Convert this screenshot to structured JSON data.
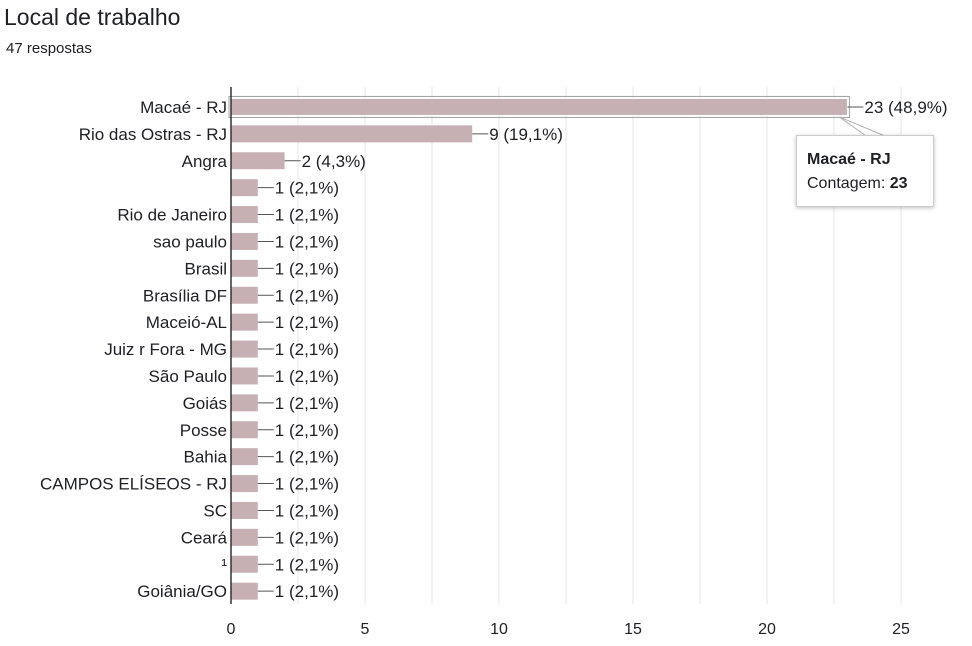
{
  "header": {
    "title": "Local de trabalho",
    "responses": "47 respostas"
  },
  "colors": {
    "bar": "#c7b0b3",
    "bar_highlight": "#c7b0b3",
    "grid": "#e6e6e6",
    "axis": "#333333"
  },
  "tooltip": {
    "title": "Macaé - RJ",
    "label": "Contagem:",
    "value": "23"
  },
  "chart_data": {
    "type": "bar",
    "orientation": "horizontal",
    "categories": [
      "Macaé - RJ",
      "Rio das Ostras - RJ",
      "Angra",
      "",
      "Rio de Janeiro",
      "sao paulo",
      "Brasil",
      "Brasília DF",
      "Maceió-AL",
      "Juiz r Fora - MG",
      "São Paulo",
      "Goiás",
      "Posse",
      "Bahia",
      "CAMPOS ELÍSEOS - RJ",
      "SC",
      "Ceará",
      "¹",
      "Goiânia/GO"
    ],
    "values": [
      23,
      9,
      2,
      1,
      1,
      1,
      1,
      1,
      1,
      1,
      1,
      1,
      1,
      1,
      1,
      1,
      1,
      1,
      1
    ],
    "data_labels": [
      "23 (48,9%)",
      "9 (19,1%)",
      "2 (4,3%)",
      "1 (2,1%)",
      "1 (2,1%)",
      "1 (2,1%)",
      "1 (2,1%)",
      "1 (2,1%)",
      "1 (2,1%)",
      "1 (2,1%)",
      "1 (2,1%)",
      "1 (2,1%)",
      "1 (2,1%)",
      "1 (2,1%)",
      "1 (2,1%)",
      "1 (2,1%)",
      "1 (2,1%)",
      "1 (2,1%)",
      "1 (2,1%)"
    ],
    "xlim": [
      0,
      25
    ],
    "x_ticks": [
      0,
      5,
      10,
      15,
      20,
      25
    ],
    "x_tick_labels": [
      "0",
      "5",
      "10",
      "15",
      "20",
      "25"
    ],
    "grid": true,
    "highlighted_category": "Macaé - RJ"
  }
}
